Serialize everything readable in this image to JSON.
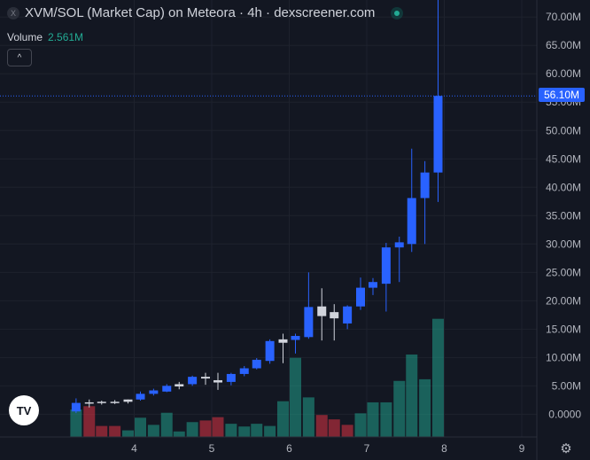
{
  "header": {
    "symbol_icon": "X",
    "title": "XVM/SOL (Market Cap) on Meteora · 4h · dexscreener.com",
    "status_icon": "live-dot-icon"
  },
  "volume_legend": {
    "label": "Volume",
    "value": "2.561M"
  },
  "collapse_icon": "^",
  "logo_text": "TV",
  "settings_icon": "⚙",
  "colors": {
    "background": "#131722",
    "grid": "#1e222d",
    "up": "#2962ff",
    "flat": "#d1d4dc",
    "vol_up": "#22ab94",
    "vol_down": "#f23645",
    "price_line": "#2962ff"
  },
  "chart_data": {
    "type": "candlestick",
    "title": "XVM/SOL (Market Cap) on Meteora · 4h · dexscreener.com",
    "interval": "4h",
    "x_ticks": [
      "4",
      "5",
      "6",
      "7",
      "8",
      "9"
    ],
    "y_ticks": [
      "0.0000",
      "5.00M",
      "10.00M",
      "15.00M",
      "20.00M",
      "25.00M",
      "30.00M",
      "35.00M",
      "40.00M",
      "45.00M",
      "50.00M",
      "55.00M",
      "60.00M",
      "65.00M",
      "70.00M"
    ],
    "ylim": [
      -4,
      73
    ],
    "unit": "M",
    "last_price_label": "56.10M",
    "last_price": 56.1,
    "candles": [
      {
        "t": 3.25,
        "o": 0.5,
        "h": 2.8,
        "l": 0.2,
        "c": 2.0
      },
      {
        "t": 3.42,
        "o": 1.9,
        "h": 2.6,
        "l": 1.2,
        "c": 2.1
      },
      {
        "t": 3.58,
        "o": 2.0,
        "h": 2.4,
        "l": 1.7,
        "c": 2.2
      },
      {
        "t": 3.75,
        "o": 2.1,
        "h": 2.5,
        "l": 1.8,
        "c": 2.2
      },
      {
        "t": 3.92,
        "o": 2.2,
        "h": 2.6,
        "l": 1.9,
        "c": 2.6
      },
      {
        "t": 4.08,
        "o": 2.6,
        "h": 4.0,
        "l": 2.4,
        "c": 3.6
      },
      {
        "t": 4.25,
        "o": 3.6,
        "h": 4.5,
        "l": 3.3,
        "c": 4.2
      },
      {
        "t": 4.42,
        "o": 4.0,
        "h": 5.3,
        "l": 3.9,
        "c": 5.0
      },
      {
        "t": 4.58,
        "o": 4.9,
        "h": 5.7,
        "l": 4.4,
        "c": 5.3
      },
      {
        "t": 4.75,
        "o": 5.3,
        "h": 6.8,
        "l": 5.0,
        "c": 6.6
      },
      {
        "t": 4.92,
        "o": 6.6,
        "h": 7.3,
        "l": 5.2,
        "c": 6.3
      },
      {
        "t": 5.08,
        "o": 6.0,
        "h": 7.3,
        "l": 4.3,
        "c": 5.6
      },
      {
        "t": 5.25,
        "o": 5.7,
        "h": 7.3,
        "l": 5.1,
        "c": 7.1
      },
      {
        "t": 5.42,
        "o": 7.1,
        "h": 8.5,
        "l": 6.7,
        "c": 8.1
      },
      {
        "t": 5.58,
        "o": 8.1,
        "h": 9.9,
        "l": 7.9,
        "c": 9.6
      },
      {
        "t": 5.75,
        "o": 9.4,
        "h": 13.2,
        "l": 8.9,
        "c": 12.9
      },
      {
        "t": 5.92,
        "o": 12.6,
        "h": 14.2,
        "l": 9.0,
        "c": 13.2
      },
      {
        "t": 6.08,
        "o": 13.1,
        "h": 14.2,
        "l": 10.7,
        "c": 13.8
      },
      {
        "t": 6.25,
        "o": 13.6,
        "h": 25.0,
        "l": 13.3,
        "c": 18.9
      },
      {
        "t": 6.42,
        "o": 19.0,
        "h": 22.2,
        "l": 13.0,
        "c": 17.3
      },
      {
        "t": 6.58,
        "o": 18.0,
        "h": 19.4,
        "l": 13.0,
        "c": 16.9
      },
      {
        "t": 6.75,
        "o": 16.0,
        "h": 19.2,
        "l": 15.0,
        "c": 19.0
      },
      {
        "t": 6.92,
        "o": 19.0,
        "h": 24.1,
        "l": 18.4,
        "c": 22.3
      },
      {
        "t": 7.08,
        "o": 22.3,
        "h": 24.0,
        "l": 21.0,
        "c": 23.3
      },
      {
        "t": 7.25,
        "o": 23.0,
        "h": 30.2,
        "l": 18.1,
        "c": 29.4
      },
      {
        "t": 7.42,
        "o": 29.4,
        "h": 31.3,
        "l": 23.3,
        "c": 30.3
      },
      {
        "t": 7.58,
        "o": 30.0,
        "h": 46.8,
        "l": 28.6,
        "c": 38.1
      },
      {
        "t": 7.75,
        "o": 38.1,
        "h": 44.6,
        "l": 30.0,
        "c": 42.6
      },
      {
        "t": 7.92,
        "o": 42.6,
        "h": 73.0,
        "l": 37.4,
        "c": 56.1
      }
    ],
    "volume": {
      "label": "Volume",
      "last_value": "2.561M",
      "max_scale": 15,
      "bars": [
        {
          "t": 3.25,
          "v": 5.0,
          "dir": "up"
        },
        {
          "t": 3.42,
          "v": 5.6,
          "dir": "down"
        },
        {
          "t": 3.58,
          "v": 2.0,
          "dir": "down"
        },
        {
          "t": 3.75,
          "v": 2.0,
          "dir": "down"
        },
        {
          "t": 3.92,
          "v": 1.2,
          "dir": "up"
        },
        {
          "t": 4.08,
          "v": 3.5,
          "dir": "up"
        },
        {
          "t": 4.25,
          "v": 2.2,
          "dir": "up"
        },
        {
          "t": 4.42,
          "v": 4.4,
          "dir": "up"
        },
        {
          "t": 4.58,
          "v": 1.0,
          "dir": "up"
        },
        {
          "t": 4.75,
          "v": 2.7,
          "dir": "up"
        },
        {
          "t": 4.92,
          "v": 3.0,
          "dir": "down"
        },
        {
          "t": 5.08,
          "v": 3.6,
          "dir": "down"
        },
        {
          "t": 5.25,
          "v": 2.4,
          "dir": "up"
        },
        {
          "t": 5.42,
          "v": 1.9,
          "dir": "up"
        },
        {
          "t": 5.58,
          "v": 2.4,
          "dir": "up"
        },
        {
          "t": 5.75,
          "v": 2.0,
          "dir": "up"
        },
        {
          "t": 5.92,
          "v": 6.5,
          "dir": "up"
        },
        {
          "t": 6.08,
          "v": 14.4,
          "dir": "up"
        },
        {
          "t": 6.25,
          "v": 7.2,
          "dir": "up"
        },
        {
          "t": 6.42,
          "v": 4.0,
          "dir": "down"
        },
        {
          "t": 6.58,
          "v": 3.2,
          "dir": "down"
        },
        {
          "t": 6.75,
          "v": 2.2,
          "dir": "down"
        },
        {
          "t": 6.92,
          "v": 4.3,
          "dir": "up"
        },
        {
          "t": 7.08,
          "v": 6.3,
          "dir": "up"
        },
        {
          "t": 7.25,
          "v": 6.3,
          "dir": "up"
        },
        {
          "t": 7.42,
          "v": 10.2,
          "dir": "up"
        },
        {
          "t": 7.58,
          "v": 15.0,
          "dir": "up"
        },
        {
          "t": 7.75,
          "v": 10.5,
          "dir": "up"
        },
        {
          "t": 7.92,
          "v": 21.5,
          "dir": "up"
        }
      ]
    }
  }
}
